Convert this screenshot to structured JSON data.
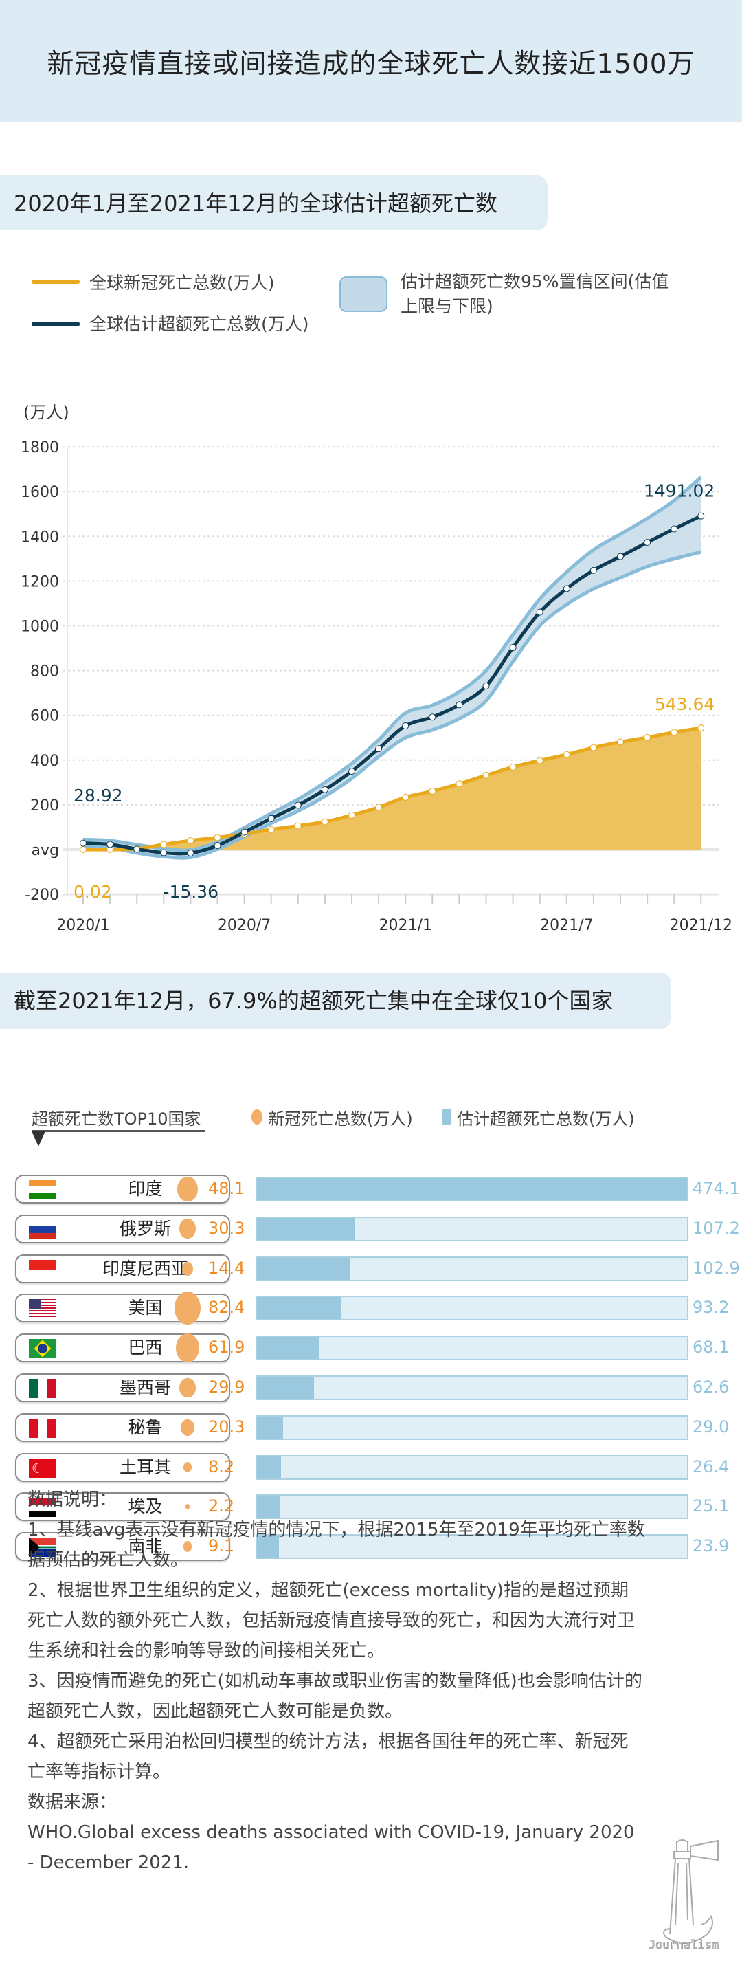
{
  "header": {
    "title": "新冠疫情直接或间接造成的全球死亡人数接近1500万"
  },
  "section1": {
    "heading": "2020年1月至2021年12月的全球估计超额死亡数"
  },
  "section2": {
    "heading": "截至2021年12月，67.9%的超额死亡集中在全球仅10个国家"
  },
  "chart_data": [
    {
      "type": "line",
      "ylabel": "(万人)",
      "ylim": [
        -200,
        1800
      ],
      "yticks": [
        "-200",
        "avg",
        "200",
        "400",
        "600",
        "800",
        "1000",
        "1200",
        "1400",
        "1600",
        "1800"
      ],
      "xtick_labels": [
        "2020/1",
        "2020/7",
        "2021/1",
        "2021/7",
        "2021/12"
      ],
      "x": [
        "2020/1",
        "2020/2",
        "2020/3",
        "2020/4",
        "2020/5",
        "2020/6",
        "2020/7",
        "2020/8",
        "2020/9",
        "2020/10",
        "2020/11",
        "2020/12",
        "2021/1",
        "2021/2",
        "2021/3",
        "2021/4",
        "2021/5",
        "2021/6",
        "2021/7",
        "2021/8",
        "2021/9",
        "2021/10",
        "2021/11",
        "2021/12"
      ],
      "grid": true,
      "legend_position": "top",
      "series": [
        {
          "name": "全球新冠死亡总数(万人)",
          "color": "#e9a91c",
          "fill": "#ecc15e",
          "values": [
            0.02,
            0,
            3,
            23,
            40,
            54,
            70,
            90,
            106,
            124,
            154,
            189,
            234,
            261,
            294,
            332,
            369,
            398,
            425,
            456,
            481,
            501,
            524,
            543.64
          ]
        },
        {
          "name": "全球估计超额死亡总数(万人)",
          "color": "#0d3b53",
          "values": [
            28.92,
            23,
            2,
            -14,
            -15.36,
            18,
            78,
            139,
            198,
            268,
            350,
            451,
            553,
            592,
            647,
            731,
            903,
            1061,
            1166,
            1248,
            1310,
            1373,
            1433,
            1491.02
          ]
        },
        {
          "name": "估计超额死亡数95%置信区间(估值上限与下限)",
          "color": "#c4dae8",
          "stroke": "#88bcd8",
          "upper": [
            45,
            40,
            22,
            5,
            -2,
            35,
            98,
            162,
            225,
            300,
            385,
            490,
            610,
            645,
            705,
            800,
            960,
            1120,
            1240,
            1340,
            1410,
            1480,
            1560,
            1665
          ],
          "lower": [
            13,
            8,
            -15,
            -32,
            -35,
            2,
            58,
            118,
            172,
            238,
            318,
            415,
            500,
            535,
            585,
            665,
            840,
            1000,
            1095,
            1165,
            1215,
            1265,
            1300,
            1330
          ]
        }
      ],
      "annotations": [
        "28.92",
        "0.02",
        "-15.36",
        "1491.02",
        "543.64"
      ]
    },
    {
      "type": "bar",
      "title": "超额死亡数TOP10国家",
      "legend": [
        "新冠死亡总数(万人)",
        "估计超额死亡总数(万人)"
      ],
      "colors": {
        "covid": "#f2ad66",
        "covid_text": "#ef8a1e",
        "excess": "#9ac8df",
        "excess_bg": "#e0eff5"
      },
      "categories": [
        "印度",
        "俄罗斯",
        "印度尼西亚",
        "美国",
        "巴西",
        "墨西哥",
        "秘鲁",
        "土耳其",
        "埃及",
        "南非"
      ],
      "covid": [
        "48.1",
        "30.3",
        "14.4",
        "82.4",
        "61.9",
        "29.9",
        "20.3",
        "8.2",
        "2.2",
        "9.1"
      ],
      "excess": [
        "474.1",
        "107.2",
        "102.9",
        "93.2",
        "68.1",
        "62.6",
        "29.0",
        "26.4",
        "25.1",
        "23.9"
      ],
      "flags": [
        "india",
        "russia",
        "indonesia",
        "usa",
        "brazil",
        "mexico",
        "peru",
        "turkey",
        "egypt",
        "south-africa"
      ]
    }
  ],
  "notes": {
    "heading": "数据说明：",
    "items": [
      "1、基线avg表示没有新冠疫情的情况下，根据2015年至2019年平均死亡率数据预估的死亡人数。",
      "2、根据世界卫生组织的定义，超额死亡(excess mortality)指的是超过预期死亡人数的额外死亡人数，包括新冠疫情直接导致的死亡，和因为大流行对卫生系统和社会的影响等导致的间接相关死亡。",
      "3、因疫情而避免的死亡(如机动车事故或职业伤害的数量降低)也会影响估计的超额死亡人数，因此超额死亡人数可能是负数。",
      "4、超额死亡采用泊松回归模型的统计方法，根据各国往年的死亡率、新冠死亡率等指标计算。"
    ],
    "source_heading": "数据来源：",
    "source": "WHO.Global excess deaths associated with COVID-19, January 2020 - December 2021."
  },
  "logo": {
    "text": "Journalism"
  }
}
